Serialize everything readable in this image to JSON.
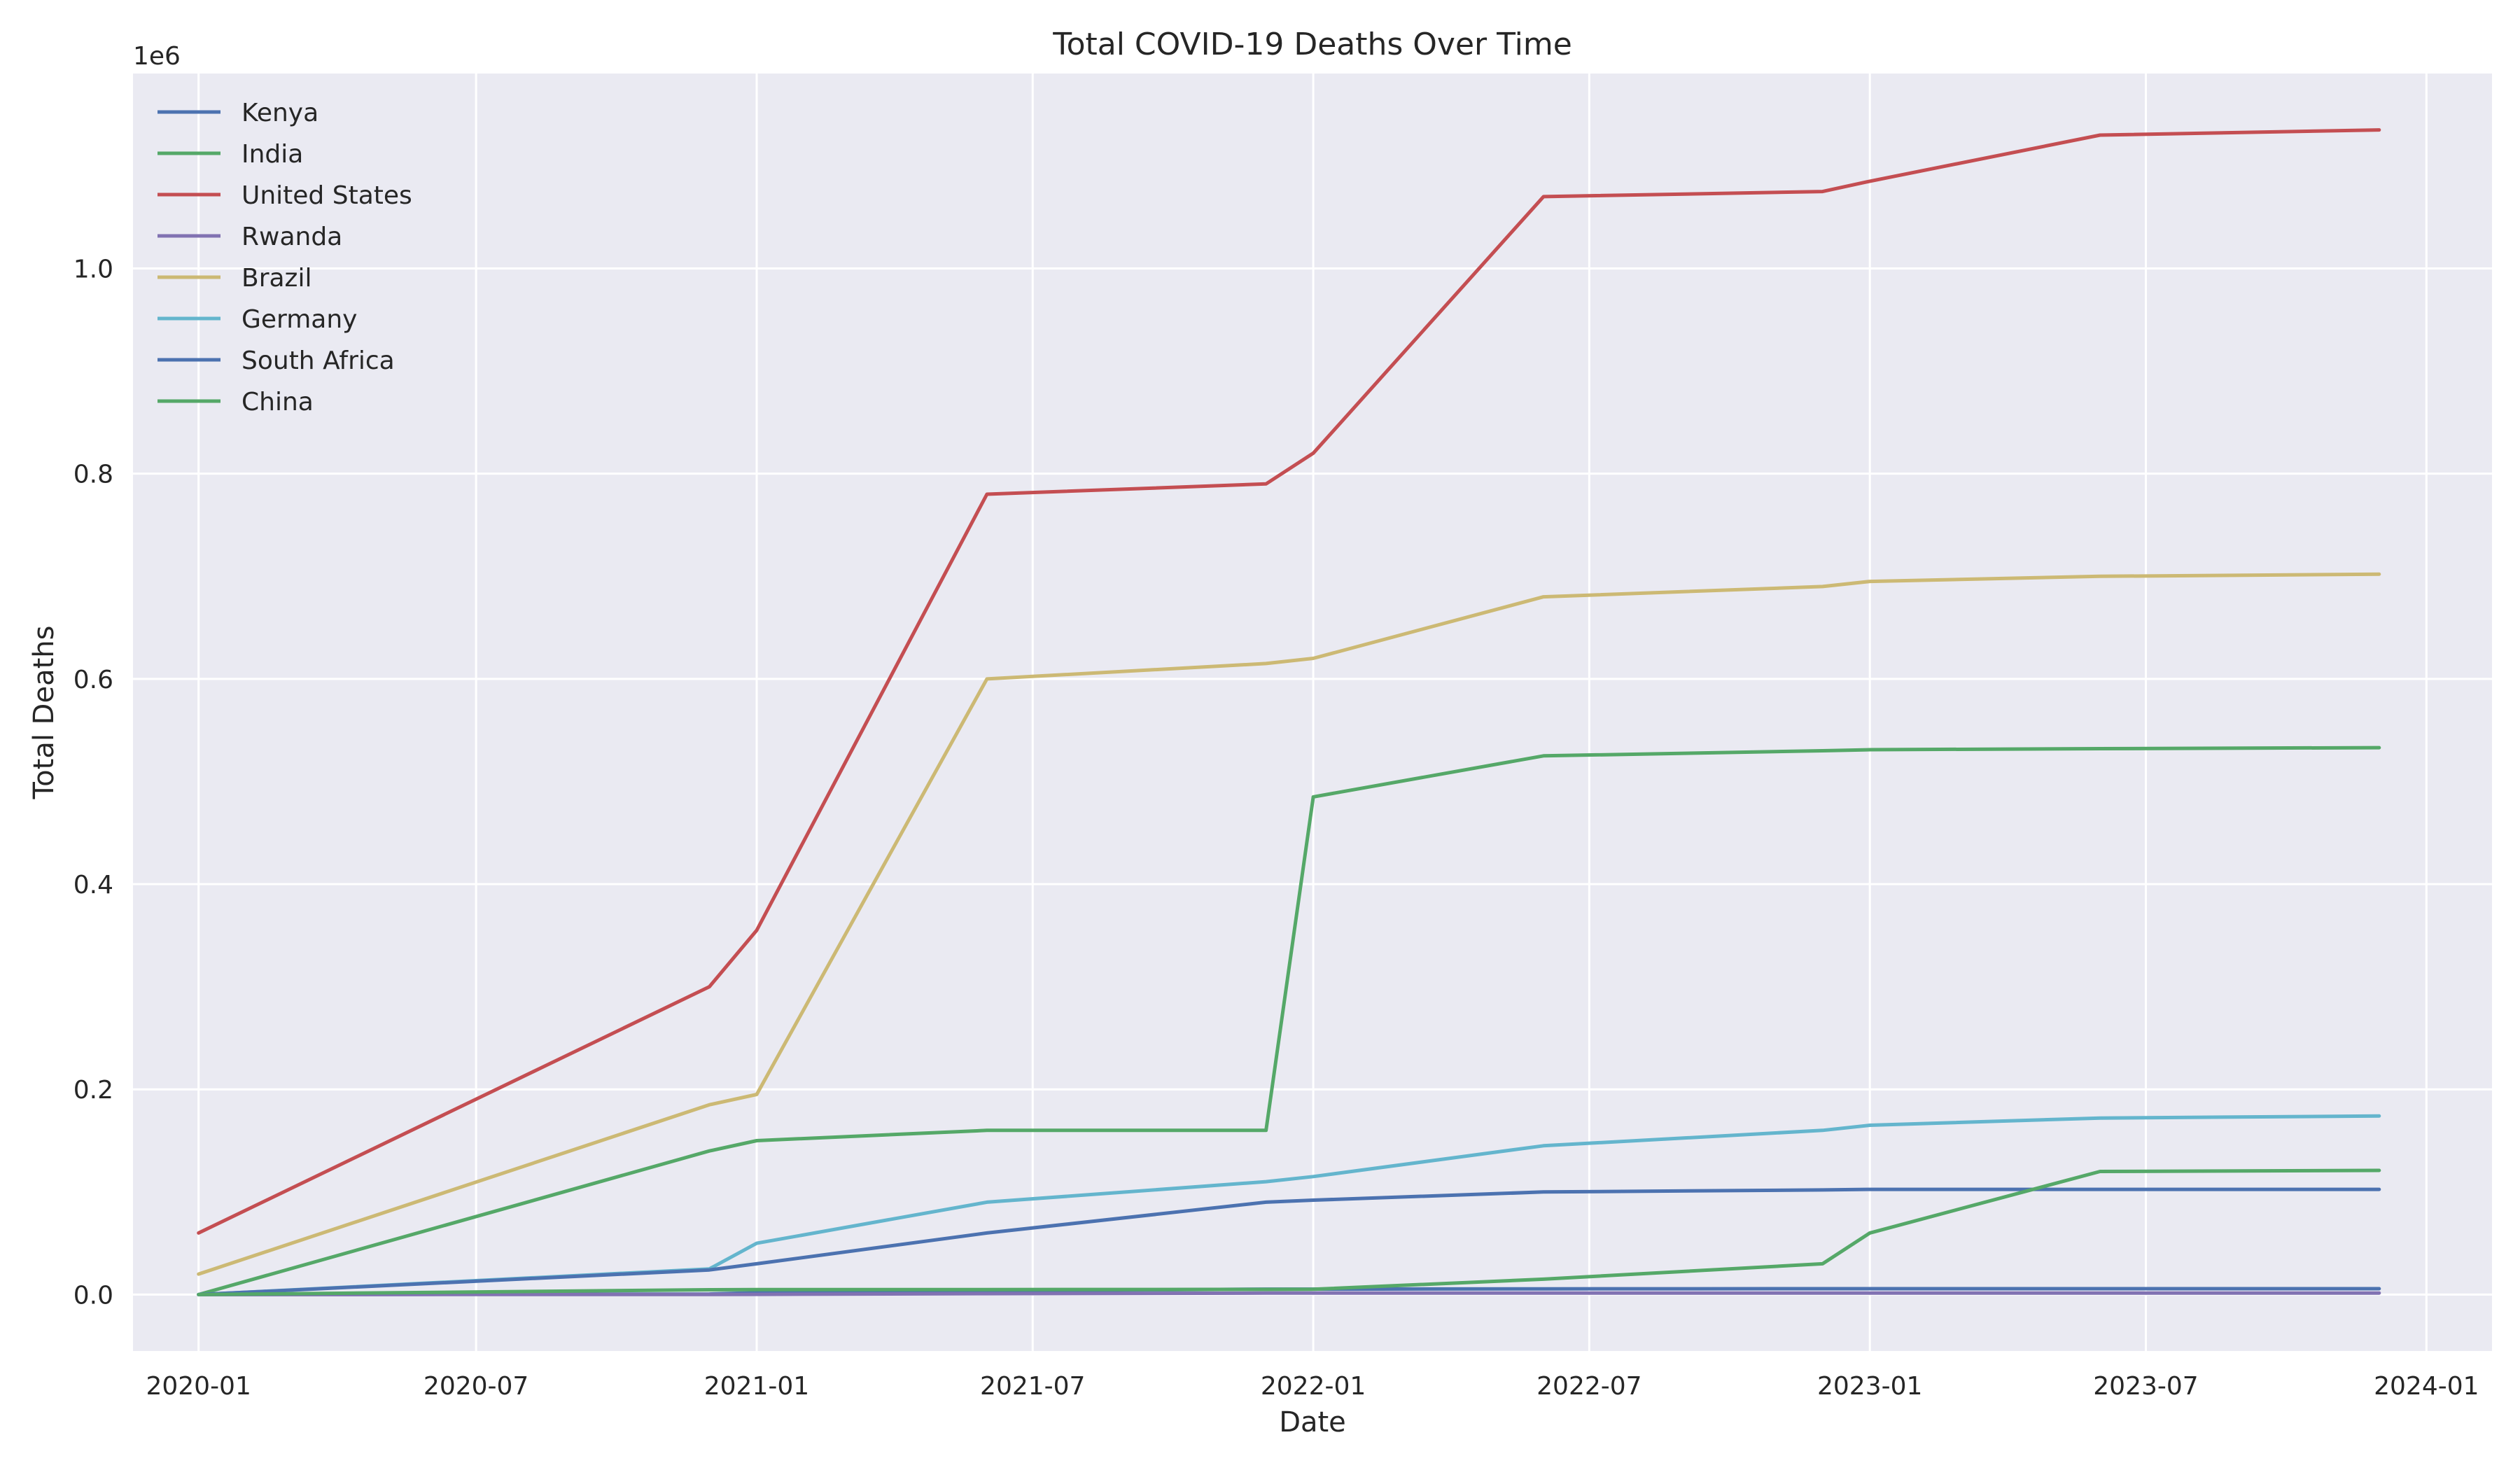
{
  "chart_data": {
    "type": "line",
    "title": "Total COVID-19 Deaths Over Time",
    "xlabel": "Date",
    "ylabel": "Total Deaths",
    "y_scale_label": "1e6",
    "xlim": [
      "2019-11-19",
      "2024-02-13"
    ],
    "ylim": [
      -55000,
      1190000
    ],
    "x_ticks": [
      "2020-01",
      "2020-07",
      "2021-01",
      "2021-07",
      "2022-01",
      "2022-07",
      "2023-01",
      "2023-07",
      "2024-01"
    ],
    "y_ticks": [
      0,
      200000,
      400000,
      600000,
      800000,
      1000000
    ],
    "y_tick_labels": [
      "0.0",
      "0.2",
      "0.4",
      "0.6",
      "0.8",
      "1.0"
    ],
    "grid": true,
    "legend_position": "top-left",
    "series": [
      {
        "name": "Kenya",
        "color": "#4C72B0",
        "points": [
          [
            "2020-01-01",
            0
          ],
          [
            "2020-12-01",
            500
          ],
          [
            "2021-01-01",
            1800
          ],
          [
            "2021-06-01",
            3500
          ],
          [
            "2021-12-01",
            5300
          ],
          [
            "2022-01-01",
            5300
          ],
          [
            "2022-06-01",
            5600
          ],
          [
            "2022-12-01",
            5700
          ],
          [
            "2023-01-01",
            5700
          ],
          [
            "2023-06-01",
            5700
          ],
          [
            "2023-12-01",
            5700
          ]
        ]
      },
      {
        "name": "India",
        "color": "#55A868",
        "points": [
          [
            "2020-01-01",
            0
          ],
          [
            "2020-12-01",
            140000
          ],
          [
            "2021-01-01",
            150000
          ],
          [
            "2021-06-01",
            160000
          ],
          [
            "2021-12-01",
            160000
          ],
          [
            "2022-01-01",
            485000
          ],
          [
            "2022-06-01",
            525000
          ],
          [
            "2022-12-01",
            530000
          ],
          [
            "2023-01-01",
            531000
          ],
          [
            "2023-06-01",
            532000
          ],
          [
            "2023-12-01",
            533000
          ]
        ]
      },
      {
        "name": "United States",
        "color": "#C44E52",
        "points": [
          [
            "2020-01-01",
            60000
          ],
          [
            "2020-12-01",
            300000
          ],
          [
            "2021-01-01",
            355000
          ],
          [
            "2021-06-01",
            780000
          ],
          [
            "2021-12-01",
            790000
          ],
          [
            "2022-01-01",
            820000
          ],
          [
            "2022-06-01",
            1070000
          ],
          [
            "2022-12-01",
            1075000
          ],
          [
            "2023-01-01",
            1085000
          ],
          [
            "2023-06-01",
            1130000
          ],
          [
            "2023-12-01",
            1135000
          ]
        ]
      },
      {
        "name": "Rwanda",
        "color": "#8172B2",
        "points": [
          [
            "2020-01-01",
            0
          ],
          [
            "2020-12-01",
            100
          ],
          [
            "2021-01-01",
            200
          ],
          [
            "2021-06-01",
            900
          ],
          [
            "2021-12-01",
            1400
          ],
          [
            "2022-01-01",
            1400
          ],
          [
            "2022-06-01",
            1460
          ],
          [
            "2022-12-01",
            1468
          ],
          [
            "2023-01-01",
            1468
          ],
          [
            "2023-06-01",
            1468
          ],
          [
            "2023-12-01",
            1468
          ]
        ]
      },
      {
        "name": "Brazil",
        "color": "#CCB974",
        "points": [
          [
            "2020-01-01",
            20000
          ],
          [
            "2020-12-01",
            185000
          ],
          [
            "2021-01-01",
            195000
          ],
          [
            "2021-06-01",
            600000
          ],
          [
            "2021-12-01",
            615000
          ],
          [
            "2022-01-01",
            620000
          ],
          [
            "2022-06-01",
            680000
          ],
          [
            "2022-12-01",
            690000
          ],
          [
            "2023-01-01",
            695000
          ],
          [
            "2023-06-01",
            700000
          ],
          [
            "2023-12-01",
            702000
          ]
        ]
      },
      {
        "name": "Germany",
        "color": "#64B5CD",
        "points": [
          [
            "2020-01-01",
            0
          ],
          [
            "2020-12-01",
            25000
          ],
          [
            "2021-01-01",
            50000
          ],
          [
            "2021-06-01",
            90000
          ],
          [
            "2021-12-01",
            110000
          ],
          [
            "2022-01-01",
            115000
          ],
          [
            "2022-06-01",
            145000
          ],
          [
            "2022-12-01",
            160000
          ],
          [
            "2023-01-01",
            165000
          ],
          [
            "2023-06-01",
            172000
          ],
          [
            "2023-12-01",
            174000
          ]
        ]
      },
      {
        "name": "South Africa",
        "color": "#4C72B0",
        "points": [
          [
            "2020-01-01",
            0
          ],
          [
            "2020-12-01",
            24000
          ],
          [
            "2021-01-01",
            30000
          ],
          [
            "2021-06-01",
            60000
          ],
          [
            "2021-12-01",
            90000
          ],
          [
            "2022-01-01",
            92000
          ],
          [
            "2022-06-01",
            100000
          ],
          [
            "2022-12-01",
            102000
          ],
          [
            "2023-01-01",
            102500
          ],
          [
            "2023-06-01",
            102500
          ],
          [
            "2023-12-01",
            102500
          ]
        ]
      },
      {
        "name": "China",
        "color": "#55A868",
        "points": [
          [
            "2020-01-01",
            0
          ],
          [
            "2020-12-01",
            4700
          ],
          [
            "2021-01-01",
            4800
          ],
          [
            "2021-06-01",
            4900
          ],
          [
            "2021-12-01",
            5000
          ],
          [
            "2022-01-01",
            5200
          ],
          [
            "2022-06-01",
            15000
          ],
          [
            "2022-12-01",
            30000
          ],
          [
            "2023-01-01",
            60000
          ],
          [
            "2023-06-01",
            120000
          ],
          [
            "2023-12-01",
            121000
          ]
        ]
      }
    ]
  }
}
